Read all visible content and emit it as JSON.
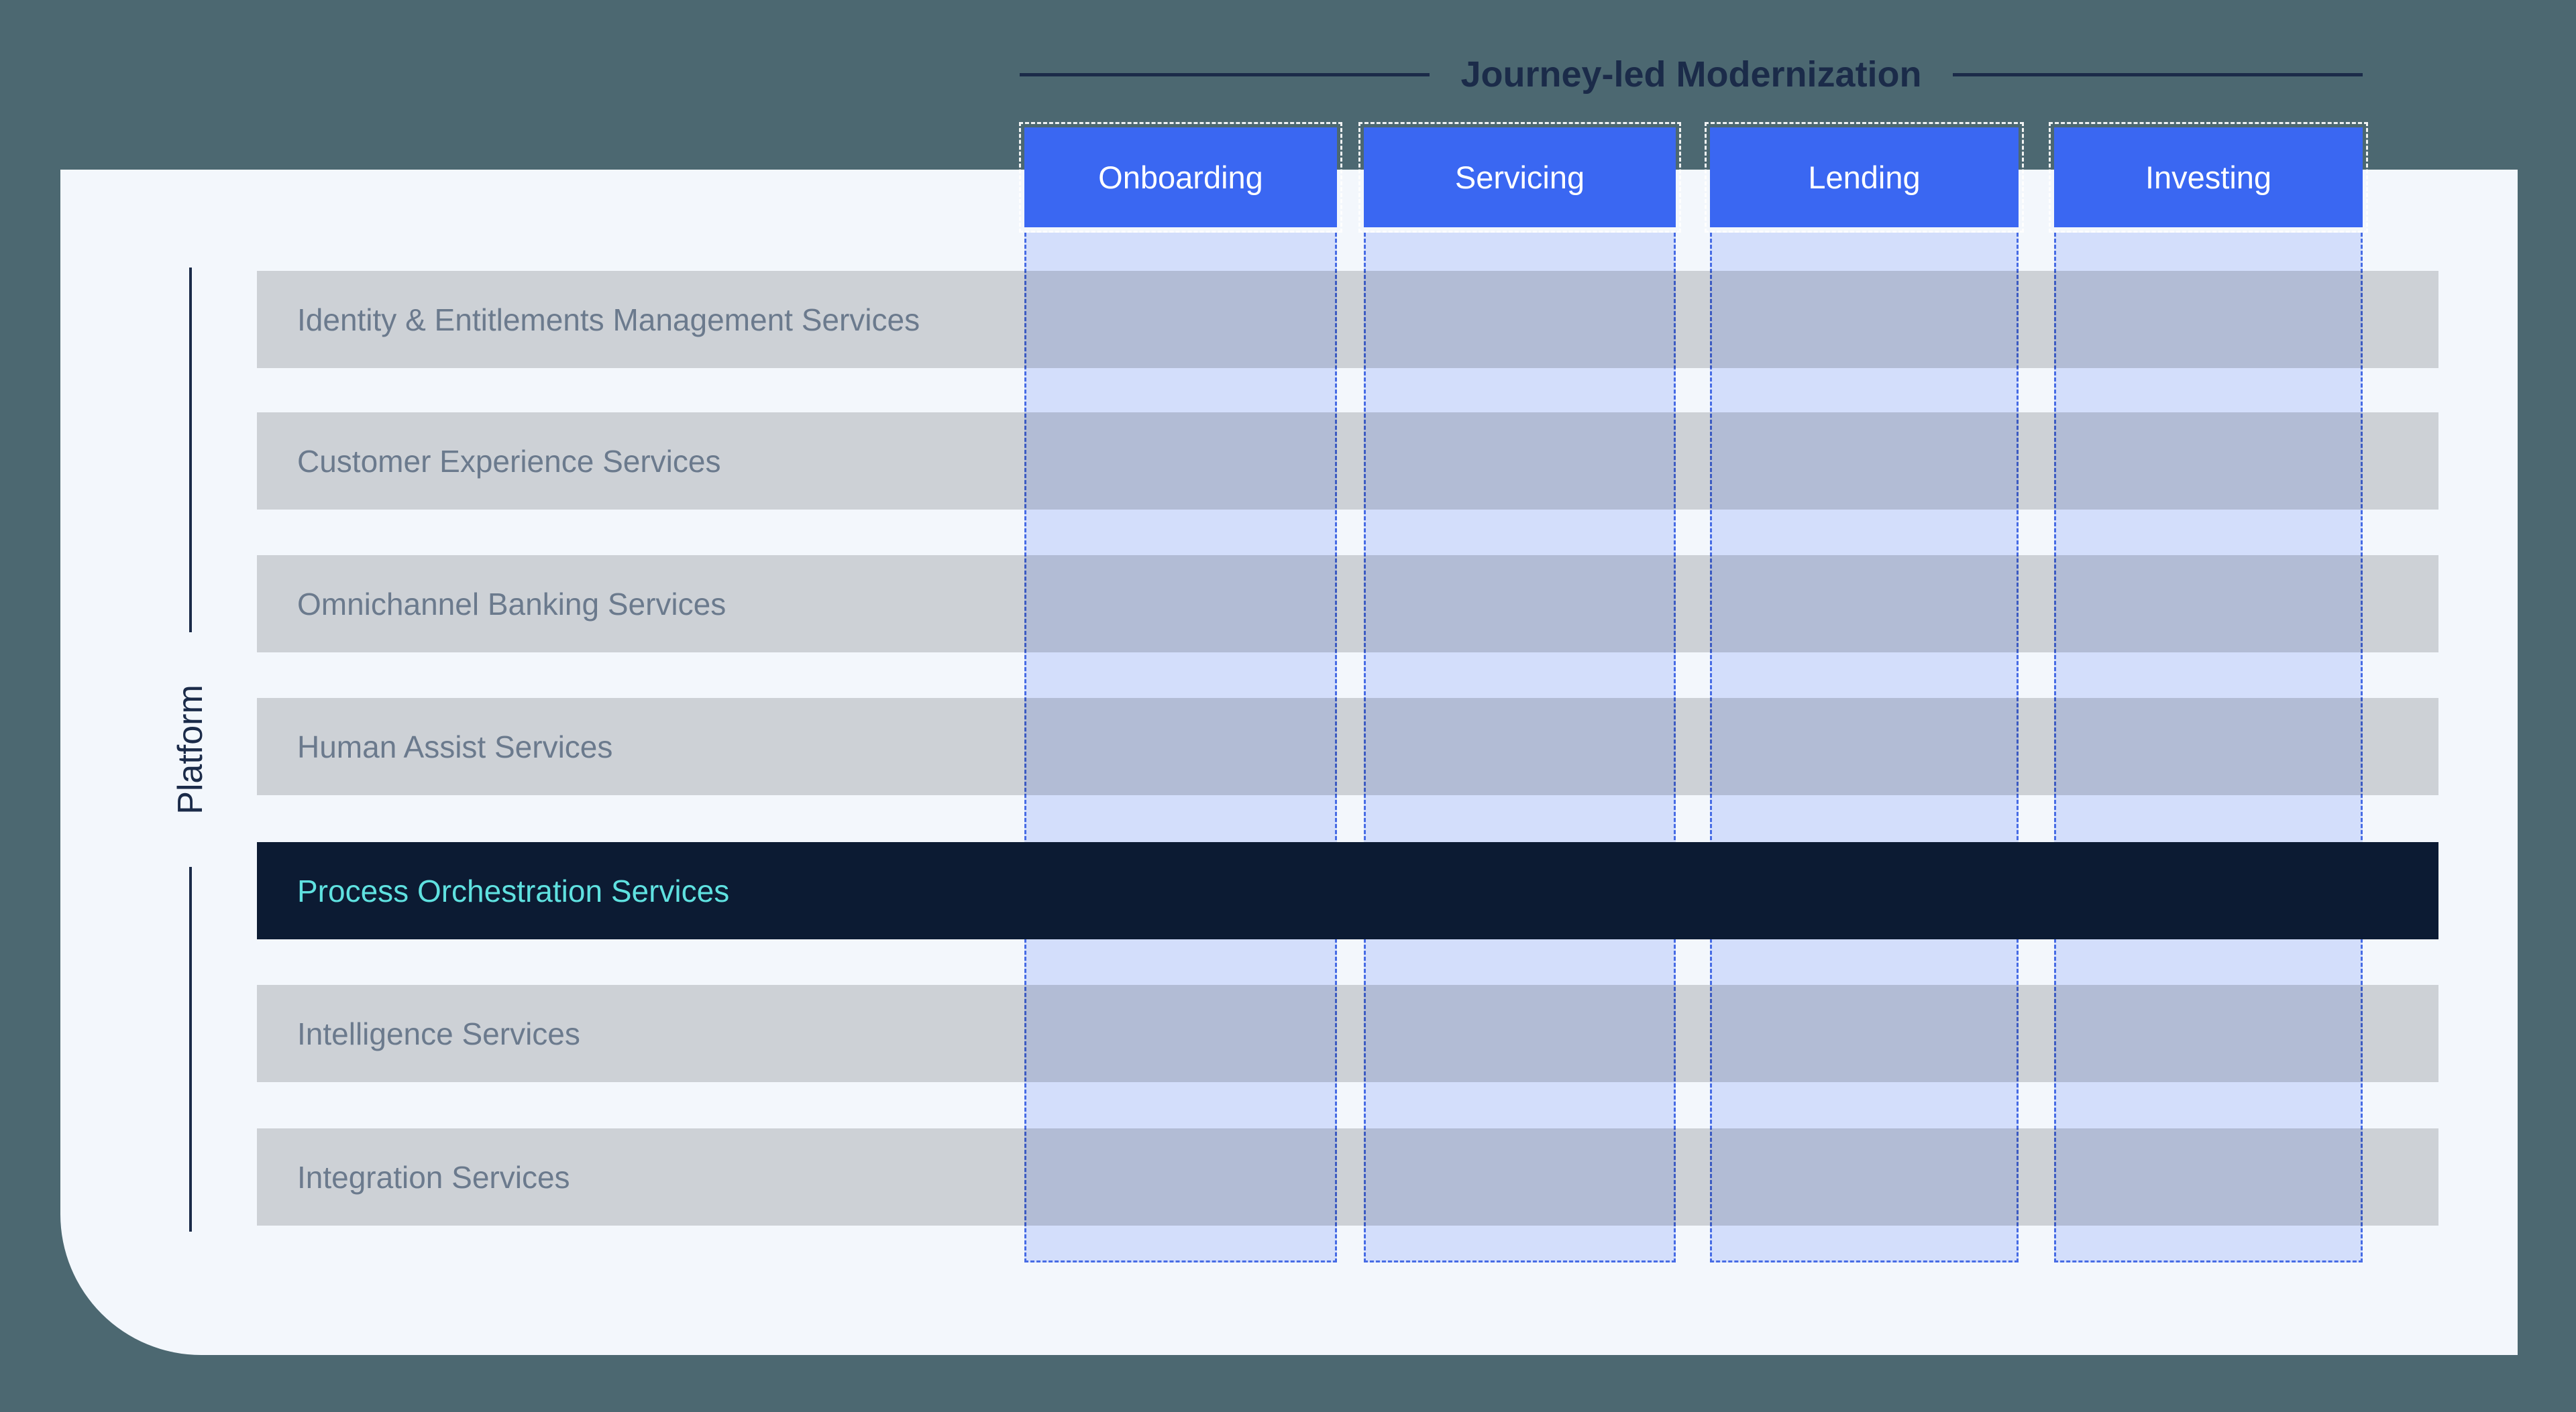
{
  "title": "Journey-led Modernization",
  "platform": {
    "label": "Platform"
  },
  "journeys": [
    {
      "label": "Onboarding"
    },
    {
      "label": "Servicing"
    },
    {
      "label": "Lending"
    },
    {
      "label": "Investing"
    }
  ],
  "services": [
    {
      "label": "Identity & Entitlements Management Services",
      "highlighted": false
    },
    {
      "label": "Customer Experience Services",
      "highlighted": false
    },
    {
      "label": "Omnichannel Banking Services",
      "highlighted": false
    },
    {
      "label": "Human Assist Services",
      "highlighted": false
    },
    {
      "label": "Process Orchestration Services",
      "highlighted": true
    },
    {
      "label": "Intelligence Services",
      "highlighted": false
    },
    {
      "label": "Integration Services",
      "highlighted": false
    }
  ],
  "colors": {
    "page_background": "#4c6871",
    "card_background": "#f3f7fc",
    "service_row_fill": "#cdd1d6",
    "service_row_text": "#6b7a8d",
    "highlight_row_fill": "#0c1b33",
    "highlight_row_text": "#5fe1e0",
    "journey_header_fill": "#3a67f2",
    "journey_header_text": "#ffffff",
    "journey_column_tint": "#dee6fe",
    "journey_dash_border": "#4a6fe8",
    "accent_navy": "#1b2b49"
  }
}
